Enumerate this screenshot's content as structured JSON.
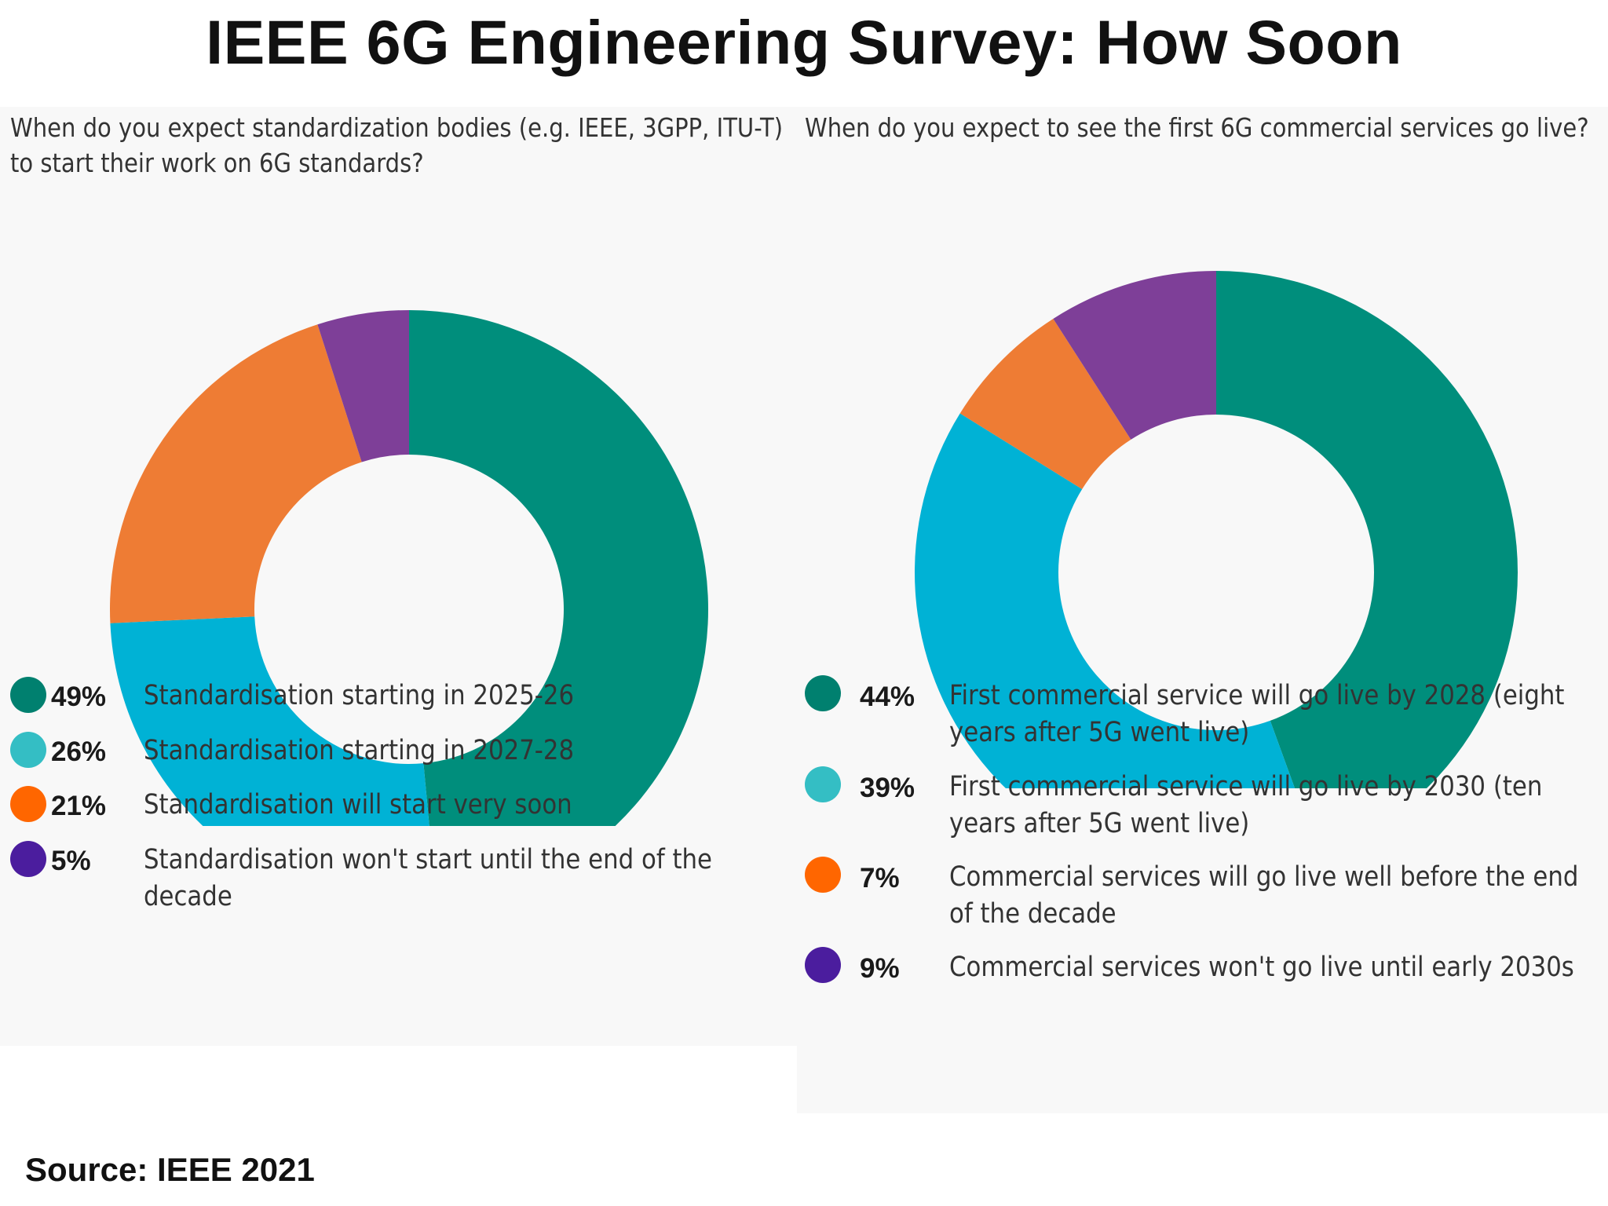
{
  "title": "IEEE 6G Engineering Survey: How Soon",
  "source": "Source: IEEE 2021",
  "colors": {
    "teal": "#008e7c",
    "cyan": "#00b2d5",
    "orange": "#ee7c34",
    "purple": "#7e3f98",
    "legend_teal": "#00806f",
    "legend_cyan": "#34bec4",
    "legend_orange": "#ff6600",
    "legend_purple": "#4b1d9e"
  },
  "chart_data": [
    {
      "type": "pie",
      "donut": true,
      "title": "When do you expect standardization bodies (e.g. IEEE, 3GPP, ITU-T) to start their work on 6G standards?",
      "series": [
        {
          "pct_label": "49%",
          "value": 49,
          "label": "Standardisation starting in 2025-26",
          "color_key": "teal"
        },
        {
          "pct_label": "26%",
          "value": 26,
          "label": "Standardisation starting in 2027-28",
          "color_key": "cyan"
        },
        {
          "pct_label": "21%",
          "value": 21,
          "label": "Standardisation will start very soon",
          "color_key": "orange"
        },
        {
          "pct_label": "5%",
          "value": 5,
          "label": "Standardisation won't start until the end of the decade",
          "color_key": "purple"
        }
      ],
      "legend_placement": "bottom"
    },
    {
      "type": "pie",
      "donut": true,
      "title": "When do you expect to see the first 6G commercial services go live?",
      "series": [
        {
          "pct_label": "44%",
          "value": 44,
          "label": "First commercial service will go live by 2028 (eight years after 5G went live)",
          "color_key": "teal"
        },
        {
          "pct_label": "39%",
          "value": 39,
          "label": "First commercial service will go live by 2030 (ten years after 5G went live)",
          "color_key": "cyan"
        },
        {
          "pct_label": "7%",
          "value": 7,
          "label": "Commercial services will go live well before the end of the decade",
          "color_key": "orange"
        },
        {
          "pct_label": "9%",
          "value": 9,
          "label": "Commercial services won't go live until early 2030s",
          "color_key": "purple"
        }
      ],
      "legend_placement": "bottom"
    }
  ]
}
